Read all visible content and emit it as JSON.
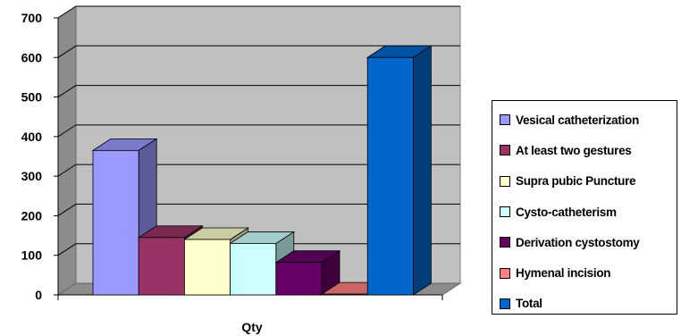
{
  "chart_data": {
    "type": "bar",
    "title": "",
    "xlabel": "Qty",
    "ylabel": "",
    "ylim": [
      0,
      700
    ],
    "yticks": [
      0,
      100,
      200,
      300,
      400,
      500,
      600,
      700
    ],
    "grid": true,
    "legend_position": "right",
    "three_d": true,
    "categories": [
      "Qty"
    ],
    "series": [
      {
        "name": "Vesical catheterization",
        "values": [
          365
        ],
        "color": "#9999FF"
      },
      {
        "name": "At least two gestures",
        "values": [
          145
        ],
        "color": "#993366"
      },
      {
        "name": "Supra pubic Puncture",
        "values": [
          140
        ],
        "color": "#FFFFCC"
      },
      {
        "name": "Cysto-catheterism",
        "values": [
          130
        ],
        "color": "#CCFFFF"
      },
      {
        "name": "Derivation cystostomy",
        "values": [
          82
        ],
        "color": "#660066"
      },
      {
        "name": "Hymenal incision",
        "values": [
          2
        ],
        "color": "#FF8080"
      },
      {
        "name": "Total",
        "values": [
          600
        ],
        "color": "#0066CC"
      }
    ]
  }
}
